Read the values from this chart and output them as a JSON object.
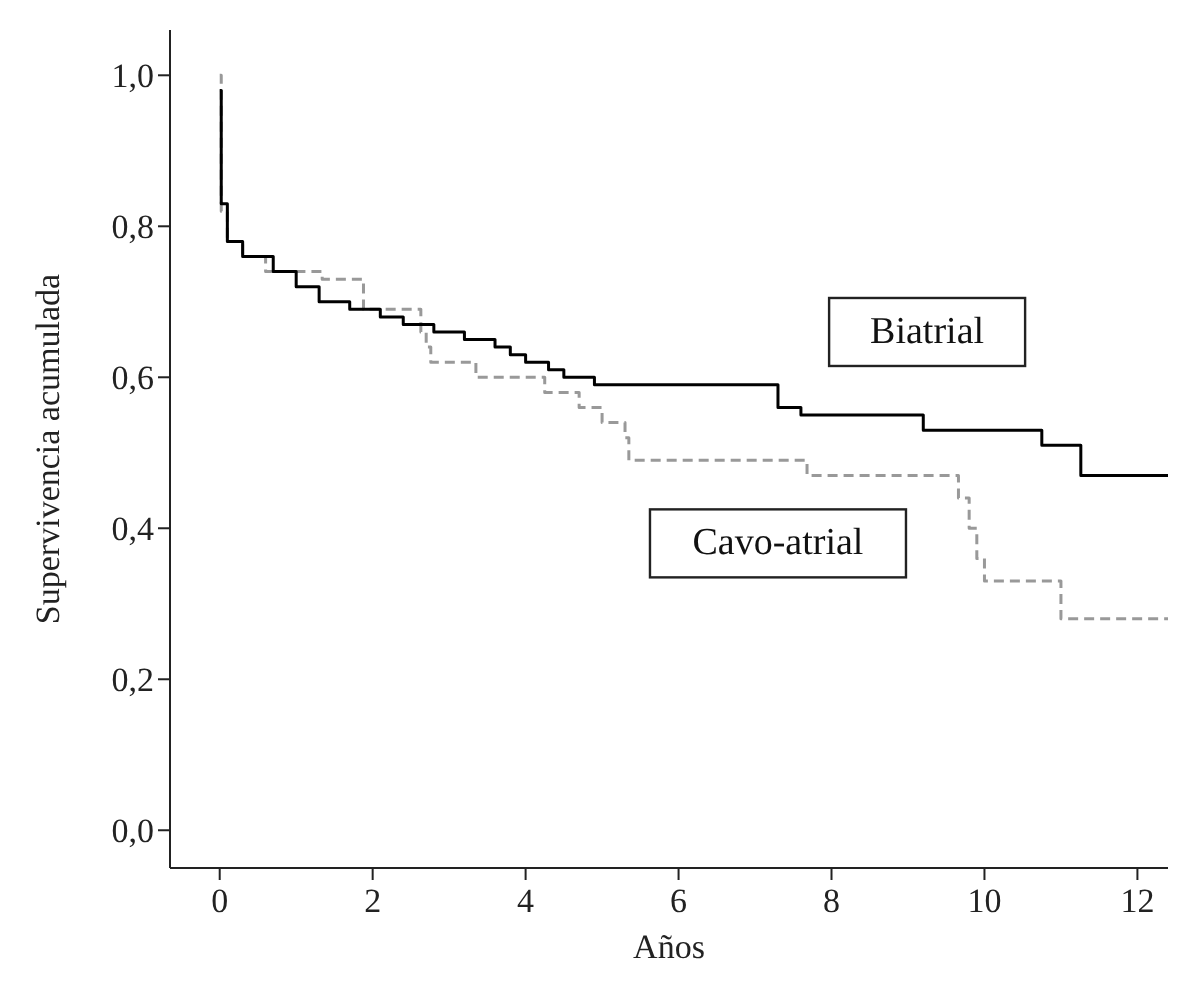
{
  "chart_data": {
    "type": "step",
    "xlabel": "Años",
    "ylabel": "Supervivencia acumulada",
    "xlim": [
      -0.65,
      12.4
    ],
    "xticks": [
      0,
      2,
      4,
      6,
      8,
      10,
      12
    ],
    "ylim": [
      -0.05,
      1.06
    ],
    "yticks": [
      {
        "value": 0,
        "label": "0,0"
      },
      {
        "value": 0.2,
        "label": "0,2"
      },
      {
        "value": 0.4,
        "label": "0,4"
      },
      {
        "value": 0.6,
        "label": "0,6"
      },
      {
        "value": 0.8,
        "label": "0,8"
      },
      {
        "value": 1,
        "label": "1,0"
      }
    ],
    "grid": false,
    "legend": false,
    "marker": "none",
    "series": [
      {
        "name": "Biatrial",
        "color": "#000000",
        "line_style": "solid",
        "x": [
          0,
          0.02,
          0.1,
          0.3,
          0.7,
          1.0,
          1.3,
          1.7,
          2.1,
          2.4,
          2.8,
          3.2,
          3.6,
          3.8,
          4.0,
          4.3,
          4.5,
          4.9,
          7.3,
          7.6,
          9.2,
          10.75,
          11.26,
          12.4
        ],
        "values": [
          0.98,
          0.83,
          0.78,
          0.76,
          0.74,
          0.72,
          0.7,
          0.69,
          0.68,
          0.67,
          0.66,
          0.65,
          0.64,
          0.63,
          0.62,
          0.61,
          0.6,
          0.59,
          0.56,
          0.55,
          0.53,
          0.51,
          0.47,
          0.47
        ]
      },
      {
        "name": "Cavo-atrial",
        "color": "#999999",
        "line_style": "dashed",
        "x": [
          0,
          0.02,
          0.1,
          0.3,
          0.6,
          1.34,
          1.88,
          2.63,
          2.7,
          2.76,
          3.35,
          4.25,
          4.7,
          5.0,
          5.3,
          5.35,
          7.68,
          9.66,
          9.8,
          9.9,
          10.0,
          11.0,
          12.4
        ],
        "values": [
          1.0,
          0.82,
          0.78,
          0.76,
          0.74,
          0.73,
          0.69,
          0.66,
          0.64,
          0.62,
          0.6,
          0.58,
          0.56,
          0.54,
          0.52,
          0.49,
          0.47,
          0.44,
          0.4,
          0.36,
          0.33,
          0.28,
          0.28
        ]
      }
    ]
  }
}
